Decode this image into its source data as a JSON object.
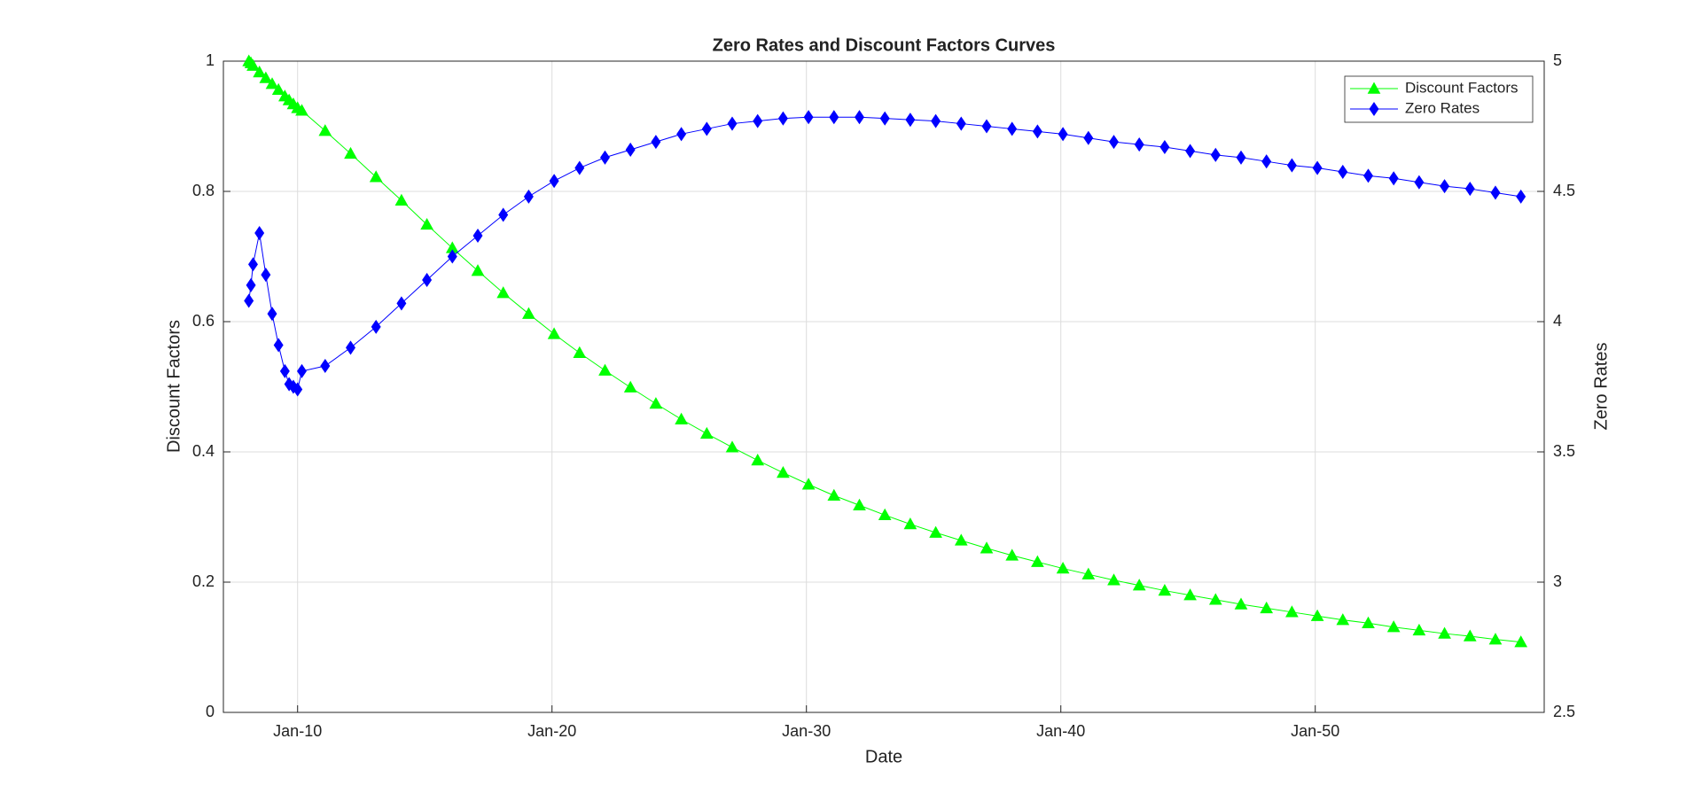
{
  "chart_data": {
    "type": "line",
    "title": "Zero Rates and Discount Factors Curves",
    "xlabel": "Date",
    "ylabel": "Discount Factors",
    "y2label": "Zero Rates",
    "x": [
      "2008-02",
      "2008-03",
      "2008-04",
      "2008-07",
      "2008-10",
      "2009-01",
      "2009-04",
      "2009-07",
      "2009-09",
      "2009-11",
      "2010-01",
      "2010-03",
      "2011-02",
      "2012-02",
      "2013-02",
      "2014-02",
      "2015-02",
      "2016-02",
      "2017-02",
      "2018-02",
      "2019-02",
      "2020-02",
      "2021-02",
      "2022-02",
      "2023-02",
      "2024-02",
      "2025-02",
      "2026-02",
      "2027-02",
      "2028-02",
      "2029-02",
      "2030-02",
      "2031-02",
      "2032-02",
      "2033-02",
      "2034-02",
      "2035-02",
      "2036-02",
      "2037-02",
      "2038-02",
      "2039-02",
      "2040-02",
      "2041-02",
      "2042-02",
      "2043-02",
      "2044-02",
      "2045-02",
      "2046-02",
      "2047-02",
      "2048-02",
      "2049-02",
      "2050-02",
      "2051-02",
      "2052-02",
      "2053-02",
      "2054-02",
      "2055-02",
      "2056-02",
      "2057-02",
      "2058-02"
    ],
    "series": [
      {
        "name": "Discount Factors",
        "color": "#00ff00",
        "marker": "triangle",
        "axis": "y",
        "values": [
          1.0,
          0.997,
          0.993,
          0.983,
          0.974,
          0.965,
          0.956,
          0.946,
          0.94,
          0.934,
          0.928,
          0.924,
          0.893,
          0.858,
          0.822,
          0.786,
          0.749,
          0.713,
          0.678,
          0.644,
          0.612,
          0.581,
          0.552,
          0.525,
          0.499,
          0.474,
          0.45,
          0.428,
          0.407,
          0.387,
          0.368,
          0.35,
          0.333,
          0.318,
          0.303,
          0.289,
          0.276,
          0.264,
          0.252,
          0.241,
          0.231,
          0.221,
          0.212,
          0.203,
          0.195,
          0.187,
          0.18,
          0.173,
          0.166,
          0.16,
          0.154,
          0.148,
          0.142,
          0.137,
          0.131,
          0.126,
          0.121,
          0.117,
          0.112,
          0.108
        ]
      },
      {
        "name": "Zero Rates",
        "color": "#0000ff",
        "marker": "diamond",
        "axis": "y2",
        "values": [
          4.08,
          4.14,
          4.22,
          4.34,
          4.18,
          4.03,
          3.91,
          3.81,
          3.76,
          3.75,
          3.74,
          3.81,
          3.83,
          3.9,
          3.98,
          4.07,
          4.16,
          4.25,
          4.33,
          4.41,
          4.48,
          4.54,
          4.59,
          4.63,
          4.66,
          4.69,
          4.72,
          4.74,
          4.76,
          4.77,
          4.78,
          4.785,
          4.785,
          4.785,
          4.78,
          4.775,
          4.77,
          4.76,
          4.75,
          4.74,
          4.73,
          4.72,
          4.705,
          4.69,
          4.68,
          4.67,
          4.655,
          4.64,
          4.63,
          4.615,
          4.6,
          4.59,
          4.575,
          4.56,
          4.55,
          4.535,
          4.52,
          4.51,
          4.495,
          4.48
        ]
      }
    ],
    "xlim": [
      "2007-02",
      "2059-01"
    ],
    "xticks": [
      {
        "value": "2010-01",
        "label": "Jan-10"
      },
      {
        "value": "2020-01",
        "label": "Jan-20"
      },
      {
        "value": "2030-01",
        "label": "Jan-30"
      },
      {
        "value": "2040-01",
        "label": "Jan-40"
      },
      {
        "value": "2050-01",
        "label": "Jan-50"
      }
    ],
    "ylim": [
      0,
      1
    ],
    "yticks": [
      0,
      0.2,
      0.4,
      0.6,
      0.8,
      1
    ],
    "y2lim": [
      2.5,
      5
    ],
    "y2ticks": [
      2.5,
      3,
      3.5,
      4,
      4.5,
      5
    ],
    "grid": true,
    "legend": "northeast"
  }
}
